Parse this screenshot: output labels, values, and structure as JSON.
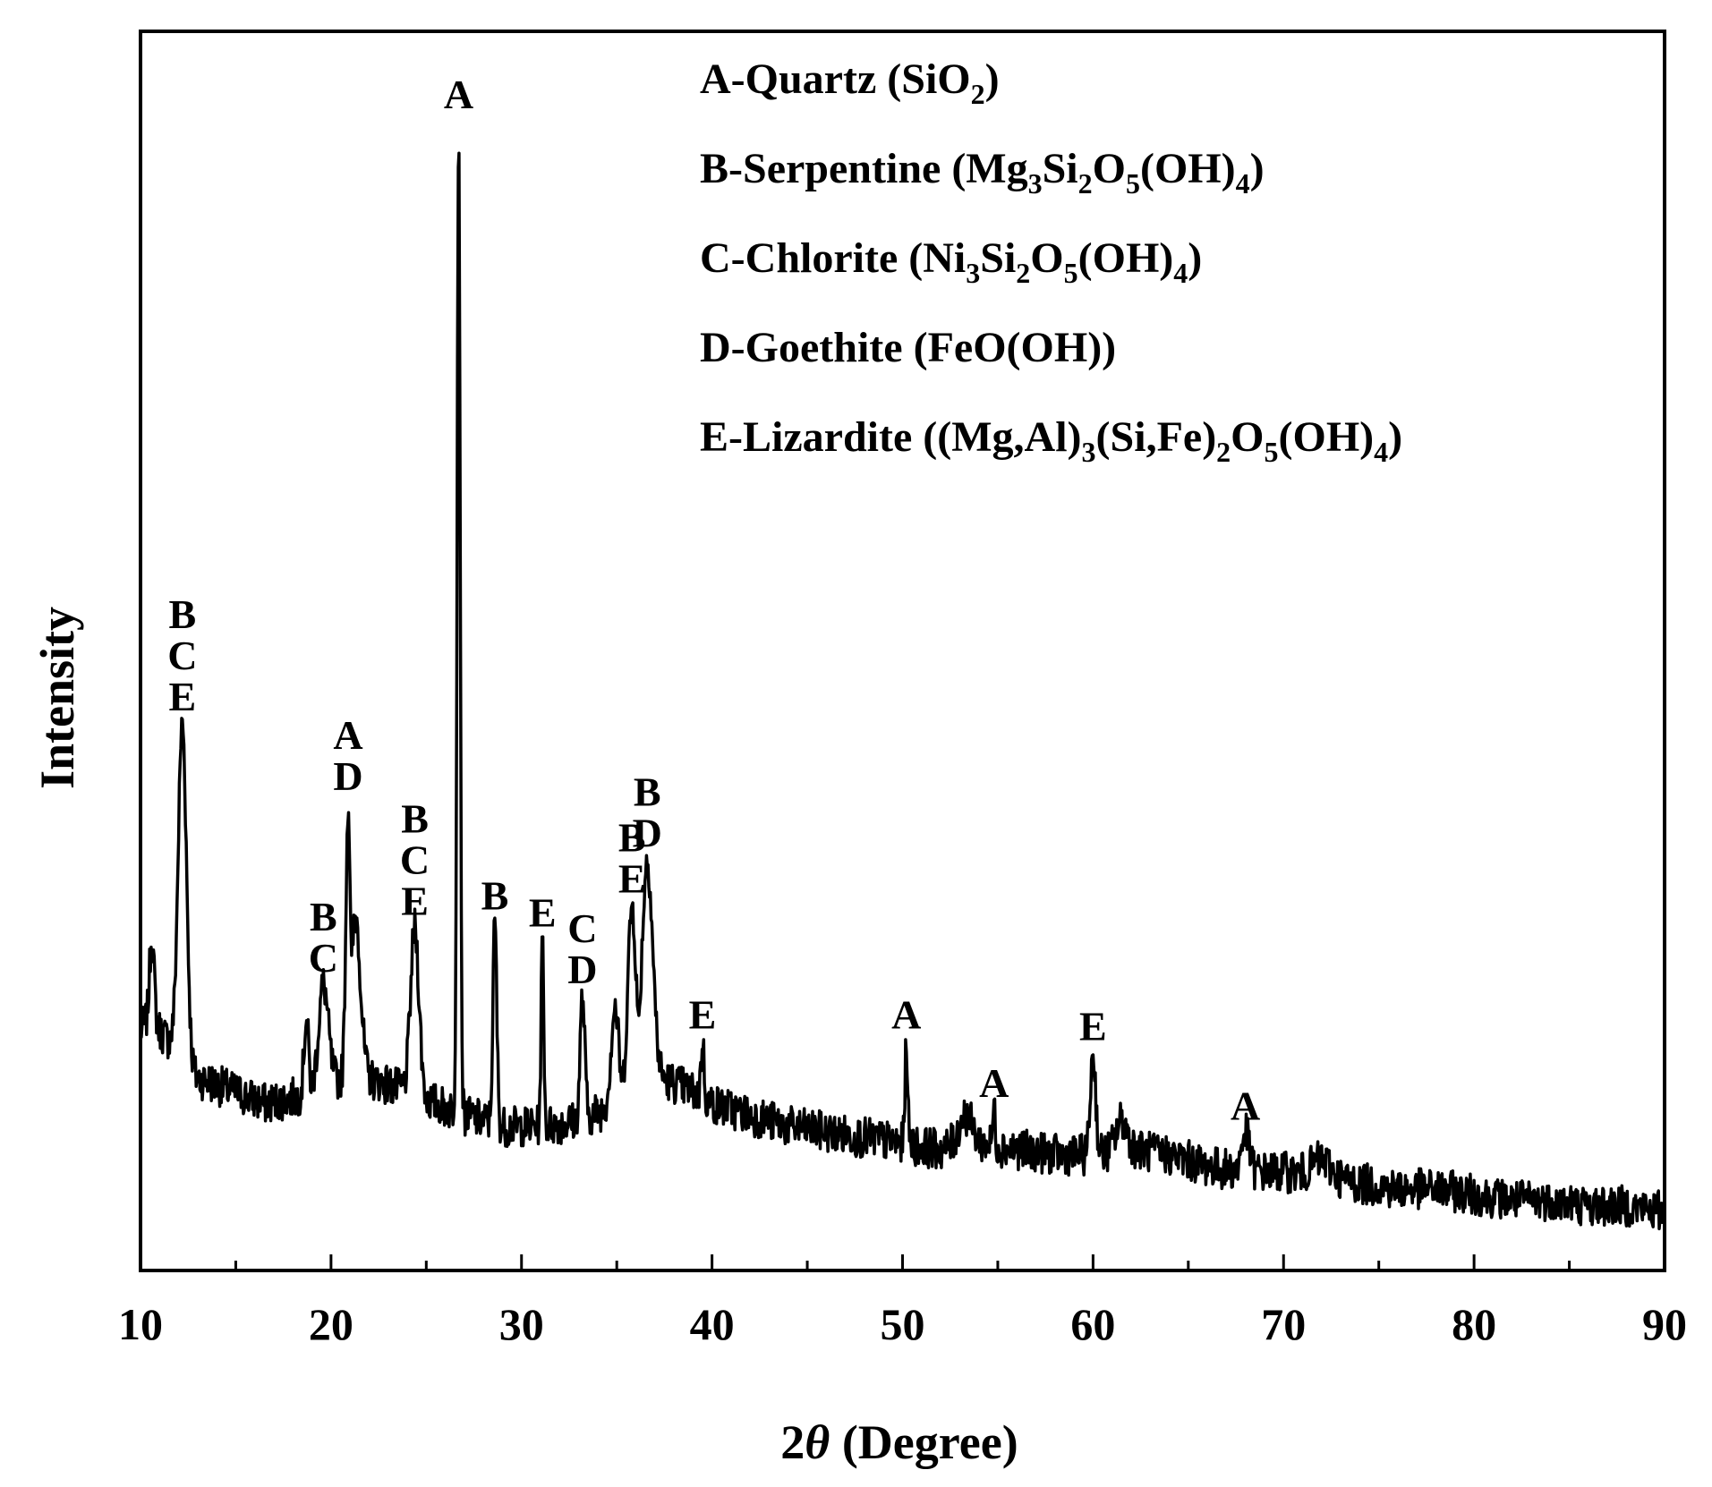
{
  "chart_data": {
    "type": "line",
    "title": "",
    "xlabel": {
      "prefix": "2",
      "italic": "θ",
      "suffix": " (Degree)"
    },
    "ylabel": "Intensity",
    "xlim": [
      10,
      90
    ],
    "ylim": [
      0,
      100
    ],
    "x_ticks": [
      10,
      20,
      30,
      40,
      50,
      60,
      70,
      80,
      90
    ],
    "x_tick_labels": [
      "10",
      "20",
      "30",
      "40",
      "50",
      "60",
      "70",
      "80",
      "90"
    ],
    "y_tick_labels": [],
    "grid": false,
    "legend_position": "top-right",
    "legend": [
      {
        "segments": [
          [
            "A-Quartz (SiO",
            "n"
          ],
          [
            "2",
            "sub"
          ],
          [
            ")",
            "n"
          ]
        ]
      },
      {
        "segments": [
          [
            "B-Serpentine (Mg",
            "n"
          ],
          [
            "3",
            "sub"
          ],
          [
            "Si",
            "n"
          ],
          [
            "2",
            "sub"
          ],
          [
            "O",
            "n"
          ],
          [
            "5",
            "sub"
          ],
          [
            "(OH)",
            "n"
          ],
          [
            "4",
            "sub"
          ],
          [
            ")",
            "n"
          ]
        ]
      },
      {
        "segments": [
          [
            "C-Chlorite (Ni",
            "n"
          ],
          [
            "3",
            "sub"
          ],
          [
            "Si",
            "n"
          ],
          [
            "2",
            "sub"
          ],
          [
            "O",
            "n"
          ],
          [
            "5",
            "sub"
          ],
          [
            "(OH)",
            "n"
          ],
          [
            "4",
            "sub"
          ],
          [
            ")",
            "n"
          ]
        ]
      },
      {
        "segments": [
          [
            "D-Goethite (FeO(OH))",
            "n"
          ]
        ]
      },
      {
        "segments": [
          [
            "E-Lizardite ((Mg,Al)",
            "n"
          ],
          [
            "3",
            "sub"
          ],
          [
            "(Si,Fe)",
            "n"
          ],
          [
            "2",
            "sub"
          ],
          [
            "O",
            "n"
          ],
          [
            "5",
            "sub"
          ],
          [
            "(OH)",
            "n"
          ],
          [
            "4",
            "sub"
          ],
          [
            ")",
            "n"
          ]
        ]
      }
    ],
    "background": {
      "x": [
        10,
        10.5,
        11.5,
        12.5,
        13.5,
        15,
        16.5,
        18,
        19.5,
        21,
        22.5,
        24,
        25.5,
        27,
        29,
        31,
        33,
        35,
        37,
        38.5,
        40,
        42,
        44,
        46,
        48,
        50,
        52,
        54,
        56,
        58,
        60,
        62,
        64,
        66,
        68,
        70,
        72,
        74,
        76,
        78,
        80,
        82,
        84,
        86,
        88,
        90
      ],
      "y": [
        20,
        21,
        19,
        16,
        15.5,
        14.5,
        13.5,
        14,
        15,
        16,
        15.5,
        14.5,
        13.5,
        12.5,
        11.5,
        11.5,
        12,
        13.5,
        16,
        15,
        13.5,
        12.5,
        11.5,
        11,
        10.5,
        10,
        9.5,
        10,
        9.5,
        9,
        9,
        9.5,
        9,
        8,
        7.5,
        7.5,
        7,
        6.5,
        6,
        6,
        5.5,
        5,
        5,
        4.5,
        4.5,
        4
      ]
    },
    "noise_amplitude": 1.8,
    "peaks": [
      {
        "x": 10.6,
        "height": 28,
        "width": 0.12
      },
      {
        "x": 12.2,
        "height": 47,
        "width": 0.22
      },
      {
        "x": 18.7,
        "height": 21,
        "width": 0.12
      },
      {
        "x": 19.6,
        "height": 24,
        "width": 0.25
      },
      {
        "x": 20.9,
        "height": 40,
        "width": 0.12
      },
      {
        "x": 21.3,
        "height": 30,
        "width": 0.25
      },
      {
        "x": 24.4,
        "height": 29,
        "width": 0.22
      },
      {
        "x": 26.7,
        "height": 100,
        "width": 0.08
      },
      {
        "x": 28.6,
        "height": 29.5,
        "width": 0.1
      },
      {
        "x": 31.1,
        "height": 28,
        "width": 0.07
      },
      {
        "x": 33.2,
        "height": 23,
        "width": 0.12
      },
      {
        "x": 34.9,
        "height": 22,
        "width": 0.2
      },
      {
        "x": 35.8,
        "height": 31,
        "width": 0.22
      },
      {
        "x": 36.6,
        "height": 35,
        "width": 0.28
      },
      {
        "x": 39.5,
        "height": 19,
        "width": 0.08
      },
      {
        "x": 50.2,
        "height": 19,
        "width": 0.07
      },
      {
        "x": 53.3,
        "height": 12.5,
        "width": 0.35
      },
      {
        "x": 54.8,
        "height": 13,
        "width": 0.07
      },
      {
        "x": 60.0,
        "height": 18,
        "width": 0.14
      },
      {
        "x": 61.5,
        "height": 12,
        "width": 0.3
      },
      {
        "x": 68.0,
        "height": 11,
        "width": 0.2
      },
      {
        "x": 72.0,
        "height": 8.5,
        "width": 0.5
      }
    ],
    "peak_labels": [
      {
        "x": 12.2,
        "text": "B\nC\nE"
      },
      {
        "x": 19.6,
        "text": "B\nC"
      },
      {
        "x": 20.9,
        "text": "A\nD"
      },
      {
        "x": 24.4,
        "text": "B\nC\nE"
      },
      {
        "x": 26.7,
        "text": "A"
      },
      {
        "x": 28.6,
        "text": "B"
      },
      {
        "x": 31.1,
        "text": "E"
      },
      {
        "x": 33.2,
        "text": "C\nD"
      },
      {
        "x": 35.8,
        "text": "B\nE"
      },
      {
        "x": 36.6,
        "text": "B\nD"
      },
      {
        "x": 39.5,
        "text": "E"
      },
      {
        "x": 50.2,
        "text": "A"
      },
      {
        "x": 54.8,
        "text": "A"
      },
      {
        "x": 60.0,
        "text": "E"
      },
      {
        "x": 68.0,
        "text": "A"
      }
    ],
    "line_color": "#000000"
  }
}
